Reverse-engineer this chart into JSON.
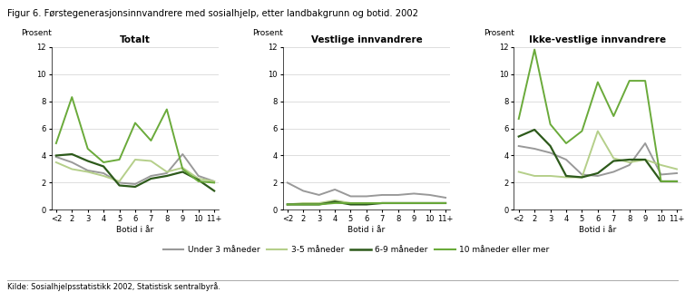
{
  "title": "Figur 6. Førstegenerasjonsinnvandrere med sosialhjelp, etter landbakgrunn og botid. 2002",
  "source": "Kilde: Sosialhjelpsstatistikk 2002, Statistisk sentralbyrå.",
  "x_labels": [
    "<2",
    "2",
    "3",
    "4",
    "5",
    "6",
    "7",
    "8",
    "9",
    "10",
    "11+"
  ],
  "xlabel": "Botid i år",
  "ylabel": "Prosent",
  "ylim": [
    0,
    12
  ],
  "yticks": [
    0,
    2,
    4,
    6,
    8,
    10,
    12
  ],
  "panel_titles": [
    "Totalt",
    "Vestlige innvandrere",
    "Ikke-vestlige innvandrere"
  ],
  "legend_labels": [
    "Under 3 måneder",
    "3-5 måneder",
    "6-9 måneder",
    "10 måneder eller mer"
  ],
  "colors": {
    "under3": "#999999",
    "3to5": "#b5cf8a",
    "6to9": "#2d5a1b",
    "10plus": "#6aaa3a"
  },
  "totalt": {
    "under3": [
      3.9,
      3.5,
      2.9,
      2.7,
      2.0,
      1.9,
      2.5,
      2.7,
      4.1,
      2.5,
      2.1
    ],
    "3to5": [
      3.5,
      3.0,
      2.8,
      2.5,
      2.1,
      3.7,
      3.6,
      2.8,
      3.1,
      2.3,
      2.1
    ],
    "6to9": [
      4.0,
      4.1,
      3.6,
      3.2,
      1.8,
      1.7,
      2.3,
      2.5,
      2.8,
      2.2,
      1.4
    ],
    "10plus": [
      4.9,
      8.3,
      4.5,
      3.5,
      3.7,
      6.4,
      5.1,
      7.4,
      3.0,
      2.1,
      2.0
    ]
  },
  "vestlige": {
    "under3": [
      2.0,
      1.4,
      1.1,
      1.5,
      1.0,
      1.0,
      1.1,
      1.1,
      1.2,
      1.1,
      0.9
    ],
    "3to5": [
      0.4,
      0.5,
      0.5,
      0.7,
      0.5,
      0.5,
      0.5,
      0.5,
      0.5,
      0.5,
      0.5
    ],
    "6to9": [
      0.4,
      0.4,
      0.4,
      0.6,
      0.4,
      0.4,
      0.5,
      0.5,
      0.5,
      0.5,
      0.5
    ],
    "10plus": [
      0.4,
      0.4,
      0.4,
      0.5,
      0.5,
      0.5,
      0.5,
      0.5,
      0.5,
      0.5,
      0.5
    ]
  },
  "ikke_vestlige": {
    "under3": [
      4.7,
      4.5,
      4.2,
      3.7,
      2.6,
      2.5,
      2.8,
      3.3,
      4.9,
      2.6,
      2.7
    ],
    "3to5": [
      2.8,
      2.5,
      2.5,
      2.4,
      2.4,
      5.8,
      3.8,
      3.5,
      3.7,
      3.3,
      3.0
    ],
    "6to9": [
      5.4,
      5.9,
      4.7,
      2.5,
      2.4,
      2.7,
      3.6,
      3.7,
      3.7,
      2.1,
      2.1
    ],
    "10plus": [
      6.7,
      11.8,
      6.3,
      4.9,
      5.8,
      9.4,
      6.9,
      9.5,
      9.5,
      2.1,
      2.1
    ]
  }
}
